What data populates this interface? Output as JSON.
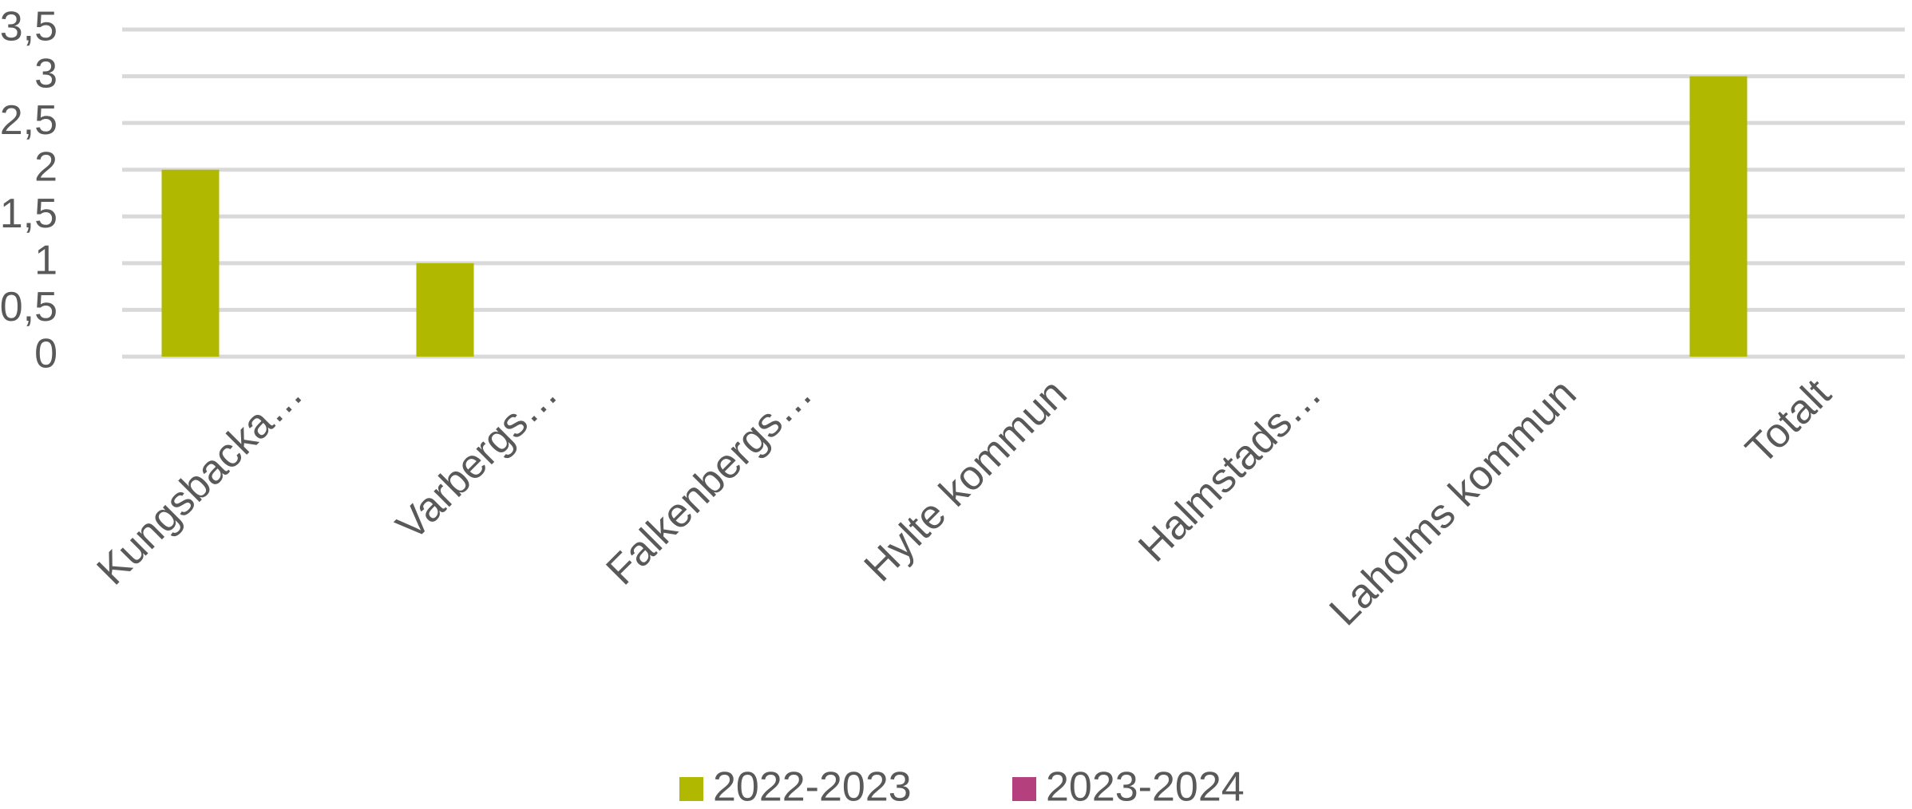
{
  "chart_data": {
    "type": "bar",
    "categories": [
      "Kungsbacka…",
      "Varbergs…",
      "Falkenbergs…",
      "Hylte kommun",
      "Halmstads…",
      "Laholms kommun",
      "Totalt"
    ],
    "series": [
      {
        "name": "2022-2023",
        "color": "#b0b800",
        "values": [
          2,
          1,
          0,
          0,
          0,
          0,
          3
        ]
      },
      {
        "name": "2023-2024",
        "color": "#b5407e",
        "values": [
          0,
          0,
          0,
          0,
          0,
          0,
          0
        ]
      }
    ],
    "ylim": [
      0,
      3.5
    ],
    "yticks": [
      0,
      {
        "value": 0.5,
        "label": "0,5"
      },
      1,
      {
        "value": 1.5,
        "label": "1,5"
      },
      2,
      {
        "value": 2.5,
        "label": "2,5"
      },
      3,
      {
        "value": 3.5,
        "label": "3,5"
      }
    ],
    "grid": true,
    "legend": "bottom"
  }
}
